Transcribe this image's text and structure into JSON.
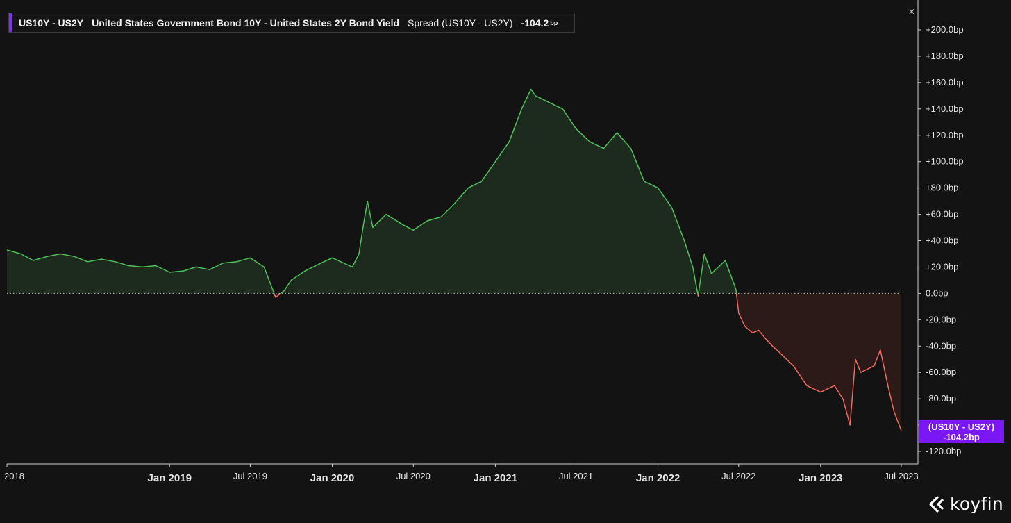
{
  "legend": {
    "symbol": "US10Y - US2Y",
    "description": "United States Government Bond 10Y - United States 2Y Bond Yield",
    "series_label": "Spread (US10Y - US2Y)",
    "value": "-104.2",
    "unit": "bp",
    "accent_color": "#7b2ff7"
  },
  "close_icon": "close-icon",
  "price_tag": {
    "line1": "(US10Y - US2Y)",
    "line2": "-104.2bp",
    "color": "#7b17f5"
  },
  "brand": {
    "name": "koyfin",
    "icon": "koyfin-logo-icon"
  },
  "colors": {
    "positive": "#4fc05a",
    "negative": "#f06a5e",
    "positive_fill": "#1c2b1e",
    "negative_fill": "#2c1a19",
    "zero_line": "#bdbdbd",
    "axis": "#cfcfcf"
  },
  "chart_data": {
    "type": "area",
    "title": "US10Y - US2Y United States Government Bond 10Y - United States 2Y Bond Yield",
    "series": [
      {
        "name": "Spread (US10Y - US2Y)",
        "unit": "bp",
        "last_value": -104.2
      }
    ],
    "xlim": [
      "2018-01-01",
      "2023-07-01"
    ],
    "ylim": [
      -120,
      200
    ],
    "x": [
      "2018-01-01",
      "2018-02-01",
      "2018-03-01",
      "2018-04-01",
      "2018-05-01",
      "2018-06-01",
      "2018-07-01",
      "2018-08-01",
      "2018-09-01",
      "2018-10-01",
      "2018-11-01",
      "2018-12-01",
      "2019-01-01",
      "2019-02-01",
      "2019-03-01",
      "2019-04-01",
      "2019-05-01",
      "2019-06-01",
      "2019-07-01",
      "2019-08-01",
      "2019-08-27",
      "2019-09-15",
      "2019-10-01",
      "2019-11-01",
      "2019-12-01",
      "2020-01-01",
      "2020-02-15",
      "2020-03-01",
      "2020-03-10",
      "2020-03-20",
      "2020-04-01",
      "2020-05-01",
      "2020-06-08",
      "2020-07-01",
      "2020-08-01",
      "2020-09-01",
      "2020-10-01",
      "2020-11-01",
      "2020-12-01",
      "2021-01-01",
      "2021-02-01",
      "2021-03-01",
      "2021-03-22",
      "2021-04-01",
      "2021-05-01",
      "2021-06-01",
      "2021-07-01",
      "2021-08-01",
      "2021-09-01",
      "2021-10-01",
      "2021-11-01",
      "2021-12-01",
      "2022-01-01",
      "2022-02-01",
      "2022-03-01",
      "2022-03-20",
      "2022-04-01",
      "2022-04-15",
      "2022-05-01",
      "2022-06-01",
      "2022-06-25",
      "2022-07-01",
      "2022-07-15",
      "2022-08-01",
      "2022-08-15",
      "2022-09-01",
      "2022-09-15",
      "2022-10-01",
      "2022-11-01",
      "2022-12-01",
      "2023-01-01",
      "2023-02-01",
      "2023-02-20",
      "2023-03-08",
      "2023-03-20",
      "2023-04-01",
      "2023-05-01",
      "2023-05-15",
      "2023-06-01",
      "2023-06-15",
      "2023-07-01"
    ],
    "values": [
      33,
      30,
      25,
      28,
      30,
      28,
      24,
      26,
      24,
      21,
      20,
      21,
      16,
      17,
      20,
      18,
      23,
      24,
      27,
      20,
      -3,
      2,
      10,
      17,
      22,
      27,
      20,
      30,
      50,
      70,
      50,
      60,
      52,
      48,
      55,
      58,
      68,
      80,
      85,
      100,
      115,
      140,
      155,
      150,
      145,
      140,
      125,
      115,
      110,
      122,
      110,
      85,
      80,
      65,
      40,
      20,
      -2,
      30,
      15,
      25,
      3,
      -15,
      -25,
      -30,
      -28,
      -35,
      -40,
      -45,
      -55,
      -70,
      -75,
      -70,
      -80,
      -100,
      -50,
      -60,
      -55,
      -43,
      -70,
      -90,
      -104.2
    ],
    "yticks": [
      "+200.0bp",
      "+180.0bp",
      "+160.0bp",
      "+140.0bp",
      "+120.0bp",
      "+100.0bp",
      "+80.0bp",
      "+60.0bp",
      "+40.0bp",
      "+20.0bp",
      "0.0bp",
      "-20.0bp",
      "-40.0bp",
      "-60.0bp",
      "-80.0bp",
      "-100.0bp",
      "-120.0bp"
    ],
    "ytick_values": [
      200,
      180,
      160,
      140,
      120,
      100,
      80,
      60,
      40,
      20,
      0,
      -20,
      -40,
      -60,
      -80,
      -100,
      -120
    ],
    "xticks": [
      "2018",
      "Jan 2019",
      "Jul 2019",
      "Jan 2020",
      "Jul 2020",
      "Jan 2021",
      "Jul 2021",
      "Jan 2022",
      "Jul 2022",
      "Jan 2023",
      "Jul 2023"
    ],
    "xtick_dates": [
      "2018-01-01",
      "2019-01-01",
      "2019-07-01",
      "2020-01-01",
      "2020-07-01",
      "2021-01-01",
      "2021-07-01",
      "2022-01-01",
      "2022-07-01",
      "2023-01-01",
      "2023-07-01"
    ],
    "xtick_major": [
      false,
      true,
      false,
      true,
      false,
      true,
      false,
      true,
      false,
      true,
      false
    ],
    "grid": false,
    "legend_position": "top-left"
  }
}
